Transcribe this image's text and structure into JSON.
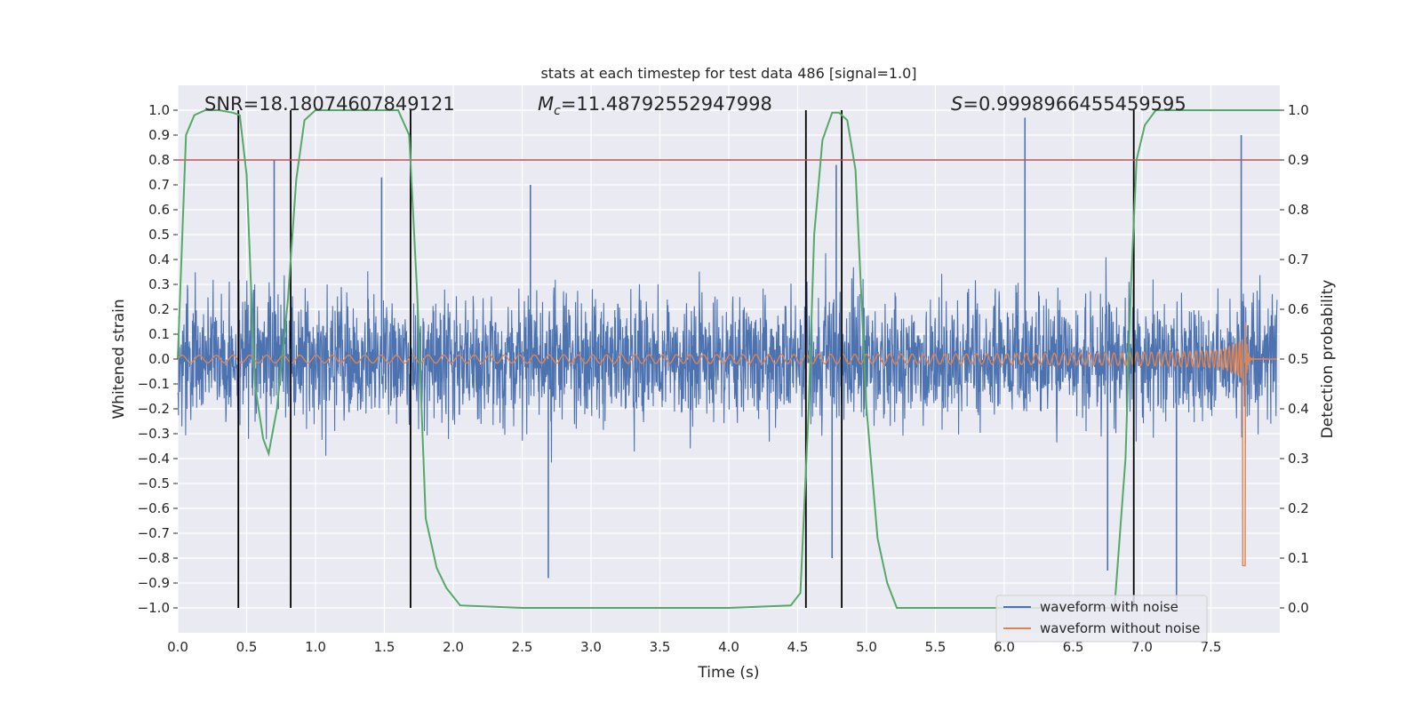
{
  "chart_data": {
    "type": "line",
    "title": "stats at each timestep for test data 486 [signal=1.0]",
    "xlabel": "Time (s)",
    "ylabel": "Whitened strain",
    "y2label": "Detection probability",
    "xlim": [
      0.0,
      8.0
    ],
    "ylim": [
      -1.1,
      1.1
    ],
    "y2lim": [
      -0.05,
      1.05
    ],
    "xticks": [
      "0.0",
      "0.5",
      "1.0",
      "1.5",
      "2.0",
      "2.5",
      "3.0",
      "3.5",
      "4.0",
      "4.5",
      "5.0",
      "5.5",
      "6.0",
      "6.5",
      "7.0",
      "7.5"
    ],
    "yticks": [
      "1.0",
      "0.9",
      "0.8",
      "0.7",
      "0.6",
      "0.5",
      "0.4",
      "0.3",
      "0.2",
      "0.1",
      "0.0",
      "−0.1",
      "−0.2",
      "−0.3",
      "−0.4",
      "−0.5",
      "−0.6",
      "−0.7",
      "−0.8",
      "−0.9",
      "−1.0"
    ],
    "y2ticks": [
      "1.0",
      "0.9",
      "0.8",
      "0.7",
      "0.6",
      "0.5",
      "0.4",
      "0.3",
      "0.2",
      "0.1",
      "0.0"
    ],
    "annotations": {
      "snr": "SNR=18.18074607849121",
      "mc_symbol": "M",
      "mc_sub": "c",
      "mc_value": "=11.48792552947998",
      "s_symbol": "S",
      "s_value": "=0.9998966455459595"
    },
    "threshold": {
      "y2": 0.9,
      "color": "#c44e52"
    },
    "vlines": [
      0.44,
      0.82,
      1.69,
      4.56,
      4.82,
      6.94
    ],
    "vline_range_y2": [
      0.0,
      1.0
    ],
    "legend": {
      "position": "lower-right",
      "entries": [
        "waveform with noise",
        "waveform without noise"
      ]
    },
    "series": [
      {
        "name": "waveform with noise",
        "color": "#4c72b0",
        "description": "noisy whitened strain, roughly symmetric around 0 with peaks near ±0.5 and outliers",
        "envelope_amplitude": 0.38,
        "notable_spikes": [
          {
            "x": 0.7,
            "y": 0.8
          },
          {
            "x": 1.48,
            "y": 0.73
          },
          {
            "x": 2.56,
            "y": 0.7
          },
          {
            "x": 2.69,
            "y": -0.88
          },
          {
            "x": 4.78,
            "y": 0.78
          },
          {
            "x": 4.75,
            "y": -0.8
          },
          {
            "x": 6.15,
            "y": 0.97
          },
          {
            "x": 6.75,
            "y": -0.85
          },
          {
            "x": 7.25,
            "y": -1.0
          },
          {
            "x": 7.72,
            "y": 0.9
          }
        ]
      },
      {
        "name": "waveform without noise",
        "color": "#dd8452",
        "description": "chirp signal with increasing amplitude and frequency, merger near t=7.75 s",
        "start_amplitude": 0.015,
        "peak_amplitude": 0.62,
        "peak_time": 7.75,
        "min_value": -0.83
      },
      {
        "name": "detection probability",
        "color": "#55a868",
        "axis": "y2",
        "x": [
          0.0,
          0.06,
          0.12,
          0.2,
          0.3,
          0.4,
          0.45,
          0.5,
          0.56,
          0.62,
          0.66,
          0.72,
          0.8,
          0.86,
          0.92,
          1.0,
          1.2,
          1.4,
          1.6,
          1.68,
          1.74,
          1.8,
          1.88,
          1.95,
          2.05,
          2.5,
          3.0,
          3.5,
          4.0,
          4.45,
          4.52,
          4.58,
          4.62,
          4.68,
          4.75,
          4.8,
          4.86,
          4.92,
          5.0,
          5.08,
          5.15,
          5.22,
          5.4,
          6.0,
          6.5,
          6.8,
          6.88,
          6.92,
          6.96,
          7.02,
          7.1,
          7.5,
          8.0
        ],
        "y": [
          0.5,
          0.95,
          0.99,
          1.0,
          1.0,
          0.995,
          0.99,
          0.87,
          0.45,
          0.34,
          0.31,
          0.4,
          0.62,
          0.86,
          0.98,
          1.0,
          1.0,
          1.0,
          1.0,
          0.95,
          0.62,
          0.18,
          0.08,
          0.04,
          0.005,
          0.0,
          0.0,
          0.0,
          0.0,
          0.005,
          0.03,
          0.4,
          0.75,
          0.94,
          0.995,
          0.995,
          0.98,
          0.88,
          0.4,
          0.14,
          0.05,
          0.0,
          0.0,
          0.0,
          0.0,
          0.0,
          0.3,
          0.65,
          0.9,
          0.97,
          1.0,
          1.0,
          1.0
        ]
      }
    ]
  }
}
